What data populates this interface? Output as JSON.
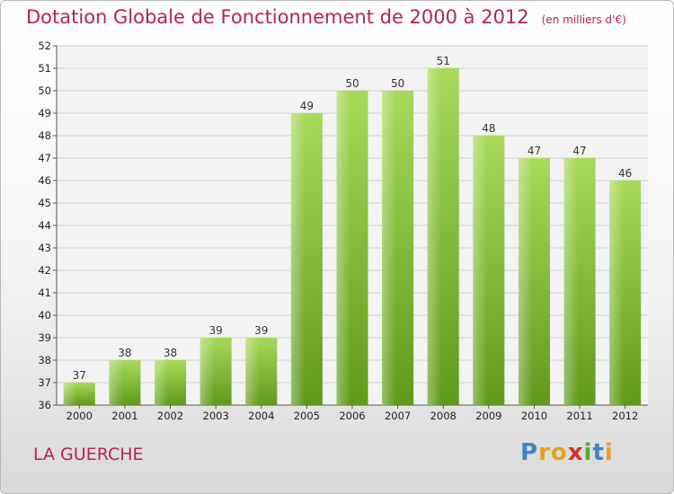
{
  "header": {
    "title": "Dotation Globale de Fonctionnement de 2000 à 2012",
    "subtitle": "(en milliers d'€)"
  },
  "footer": {
    "commune": "LA GUERCHE",
    "logo": {
      "letters": [
        "P",
        "r",
        "o",
        "x",
        "i",
        "t",
        "i"
      ],
      "colors": [
        "#3a87c8",
        "#e8a020",
        "#e8a020",
        "#d9302c",
        "#5aa830",
        "#3a87c8",
        "#e8a020"
      ]
    }
  },
  "chart_data": {
    "type": "bar",
    "categories": [
      "2000",
      "2001",
      "2002",
      "2003",
      "2004",
      "2005",
      "2006",
      "2007",
      "2008",
      "2009",
      "2010",
      "2011",
      "2012"
    ],
    "values": [
      37,
      38,
      38,
      39,
      39,
      49,
      50,
      50,
      51,
      48,
      47,
      47,
      46
    ],
    "title": "Dotation Globale de Fonctionnement de 2000 à 2012",
    "subtitle": "(en milliers d'€)",
    "ylim": [
      36,
      52
    ],
    "yticks": [
      36,
      37,
      38,
      39,
      40,
      41,
      42,
      43,
      44,
      45,
      46,
      47,
      48,
      49,
      50,
      51,
      52
    ],
    "grid": true,
    "bar_color": "#7fba3c",
    "bar_color_light": "#a8d95a",
    "bar_color_dark": "#5f9a1a"
  }
}
